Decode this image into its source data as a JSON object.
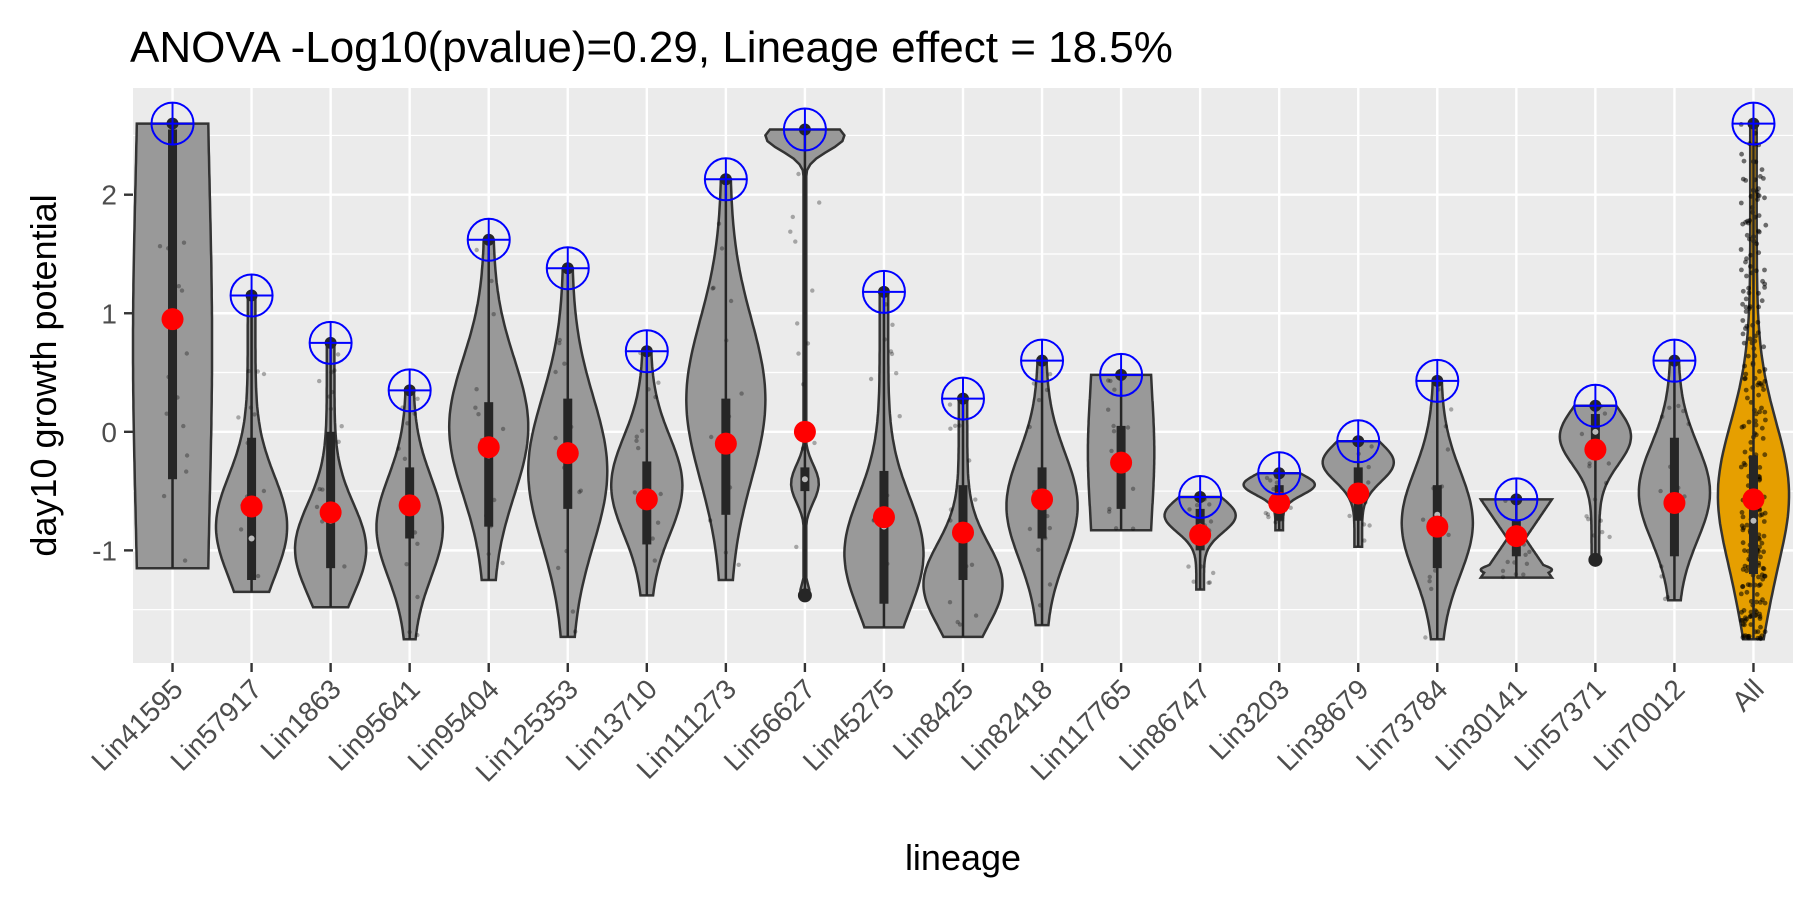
{
  "chart_data": {
    "type": "violin",
    "title": "ANOVA -Log10(pvalue)=0.29, Lineage effect = 18.5%",
    "xlabel": "lineage",
    "ylabel": "day10 growth potential",
    "ylim": [
      -1.95,
      2.9
    ],
    "yticks": [
      -1,
      0,
      1,
      2
    ],
    "grid": true,
    "legend": "none",
    "colors": {
      "panel": "#ebebeb",
      "grid": "#ffffff",
      "violin_fill": "#999999",
      "violin_all_fill": "#e69f00",
      "violin_stroke": "#333333",
      "mean_point": "#ff0000",
      "max_marker": "#0000ff",
      "text": "#000000",
      "tick_text": "#4d4d4d"
    },
    "categories": [
      "Lin41595",
      "Lin57917",
      "Lin1863",
      "Lin95641",
      "Lin95404",
      "Lin125353",
      "Lin13710",
      "Lin111273",
      "Lin56627",
      "Lin45275",
      "Lin8425",
      "Lin82418",
      "Lin117765",
      "Lin86747",
      "Lin3203",
      "Lin38679",
      "Lin73784",
      "Lin30141",
      "Lin57371",
      "Lin70012",
      "All"
    ],
    "series": [
      {
        "lineage": "Lin41595",
        "min": -1.15,
        "max": 2.6,
        "q1": -0.4,
        "median": 1.0,
        "q3": 2.55,
        "mean": 0.95,
        "shape": "uniform",
        "width": 0.5
      },
      {
        "lineage": "Lin57917",
        "min": -1.35,
        "max": 1.15,
        "q1": -1.25,
        "median": -0.9,
        "q3": -0.05,
        "mean": -0.63,
        "shape": "bottom",
        "width": 0.45
      },
      {
        "lineage": "Lin1863",
        "min": -1.48,
        "max": 0.75,
        "q1": -1.15,
        "median": -0.75,
        "q3": 0.0,
        "mean": -0.68,
        "shape": "bottom",
        "width": 0.45
      },
      {
        "lineage": "Lin95641",
        "min": -1.75,
        "max": 0.35,
        "q1": -0.9,
        "median": -0.6,
        "q3": -0.3,
        "mean": -0.62,
        "shape": "middle",
        "width": 0.42
      },
      {
        "lineage": "Lin95404",
        "min": -1.25,
        "max": 1.62,
        "q1": -0.8,
        "median": -0.2,
        "q3": 0.25,
        "mean": -0.13,
        "shape": "middle",
        "width": 0.5
      },
      {
        "lineage": "Lin125353",
        "min": -1.73,
        "max": 1.38,
        "q1": -0.65,
        "median": -0.2,
        "q3": 0.28,
        "mean": -0.18,
        "shape": "middle",
        "width": 0.5
      },
      {
        "lineage": "Lin13710",
        "min": -1.38,
        "max": 0.68,
        "q1": -0.95,
        "median": -0.55,
        "q3": -0.25,
        "mean": -0.57,
        "shape": "middle",
        "width": 0.45
      },
      {
        "lineage": "Lin111273",
        "min": -1.25,
        "max": 2.13,
        "q1": -0.7,
        "median": -0.15,
        "q3": 0.28,
        "mean": -0.1,
        "shape": "middle",
        "width": 0.5
      },
      {
        "lineage": "Lin56627",
        "min": -1.38,
        "max": 2.55,
        "q1": -0.5,
        "median": -0.4,
        "q3": -0.3,
        "mean": 0.0,
        "shape": "bimodal",
        "width": 0.5
      },
      {
        "lineage": "Lin45275",
        "min": -1.65,
        "max": 1.18,
        "q1": -1.45,
        "median": -0.8,
        "q3": -0.33,
        "mean": -0.72,
        "shape": "bottom",
        "width": 0.5
      },
      {
        "lineage": "Lin8425",
        "min": -1.73,
        "max": 0.28,
        "q1": -1.25,
        "median": -0.85,
        "q3": -0.45,
        "mean": -0.85,
        "shape": "bottom",
        "width": 0.5
      },
      {
        "lineage": "Lin82418",
        "min": -1.63,
        "max": 0.6,
        "q1": -0.9,
        "median": -0.6,
        "q3": -0.3,
        "mean": -0.57,
        "shape": "middle",
        "width": 0.45
      },
      {
        "lineage": "Lin117765",
        "min": -0.83,
        "max": 0.48,
        "q1": -0.65,
        "median": -0.3,
        "q3": 0.05,
        "mean": -0.26,
        "shape": "uniform",
        "width": 0.42
      },
      {
        "lineage": "Lin86747",
        "min": -1.33,
        "max": -0.55,
        "q1": -1.0,
        "median": -0.8,
        "q3": -0.65,
        "mean": -0.87,
        "shape": "top",
        "width": 0.45
      },
      {
        "lineage": "Lin3203",
        "min": -0.83,
        "max": -0.35,
        "q1": -0.75,
        "median": -0.6,
        "q3": -0.45,
        "mean": -0.6,
        "shape": "top",
        "width": 0.45
      },
      {
        "lineage": "Lin38679",
        "min": -0.97,
        "max": -0.08,
        "q1": -0.75,
        "median": -0.55,
        "q3": -0.3,
        "mean": -0.52,
        "shape": "top",
        "width": 0.45
      },
      {
        "lineage": "Lin73784",
        "min": -1.75,
        "max": 0.43,
        "q1": -1.15,
        "median": -0.7,
        "q3": -0.45,
        "mean": -0.8,
        "shape": "middle",
        "width": 0.45
      },
      {
        "lineage": "Lin30141",
        "min": -1.23,
        "max": -0.57,
        "q1": -1.05,
        "median": -0.9,
        "q3": -0.75,
        "mean": -0.88,
        "shape": "hourglass",
        "width": 0.45
      },
      {
        "lineage": "Lin57371",
        "min": -1.08,
        "max": 0.22,
        "q1": -0.2,
        "median": 0.0,
        "q3": 0.15,
        "mean": -0.15,
        "shape": "top",
        "width": 0.45
      },
      {
        "lineage": "Lin70012",
        "min": -1.42,
        "max": 0.6,
        "q1": -1.05,
        "median": -0.6,
        "q3": -0.05,
        "mean": -0.6,
        "shape": "middle",
        "width": 0.45
      },
      {
        "lineage": "All",
        "min": -1.75,
        "max": 2.6,
        "q1": -1.2,
        "median": -0.75,
        "q3": -0.2,
        "mean": -0.57,
        "shape": "all",
        "width": 0.45
      }
    ]
  }
}
